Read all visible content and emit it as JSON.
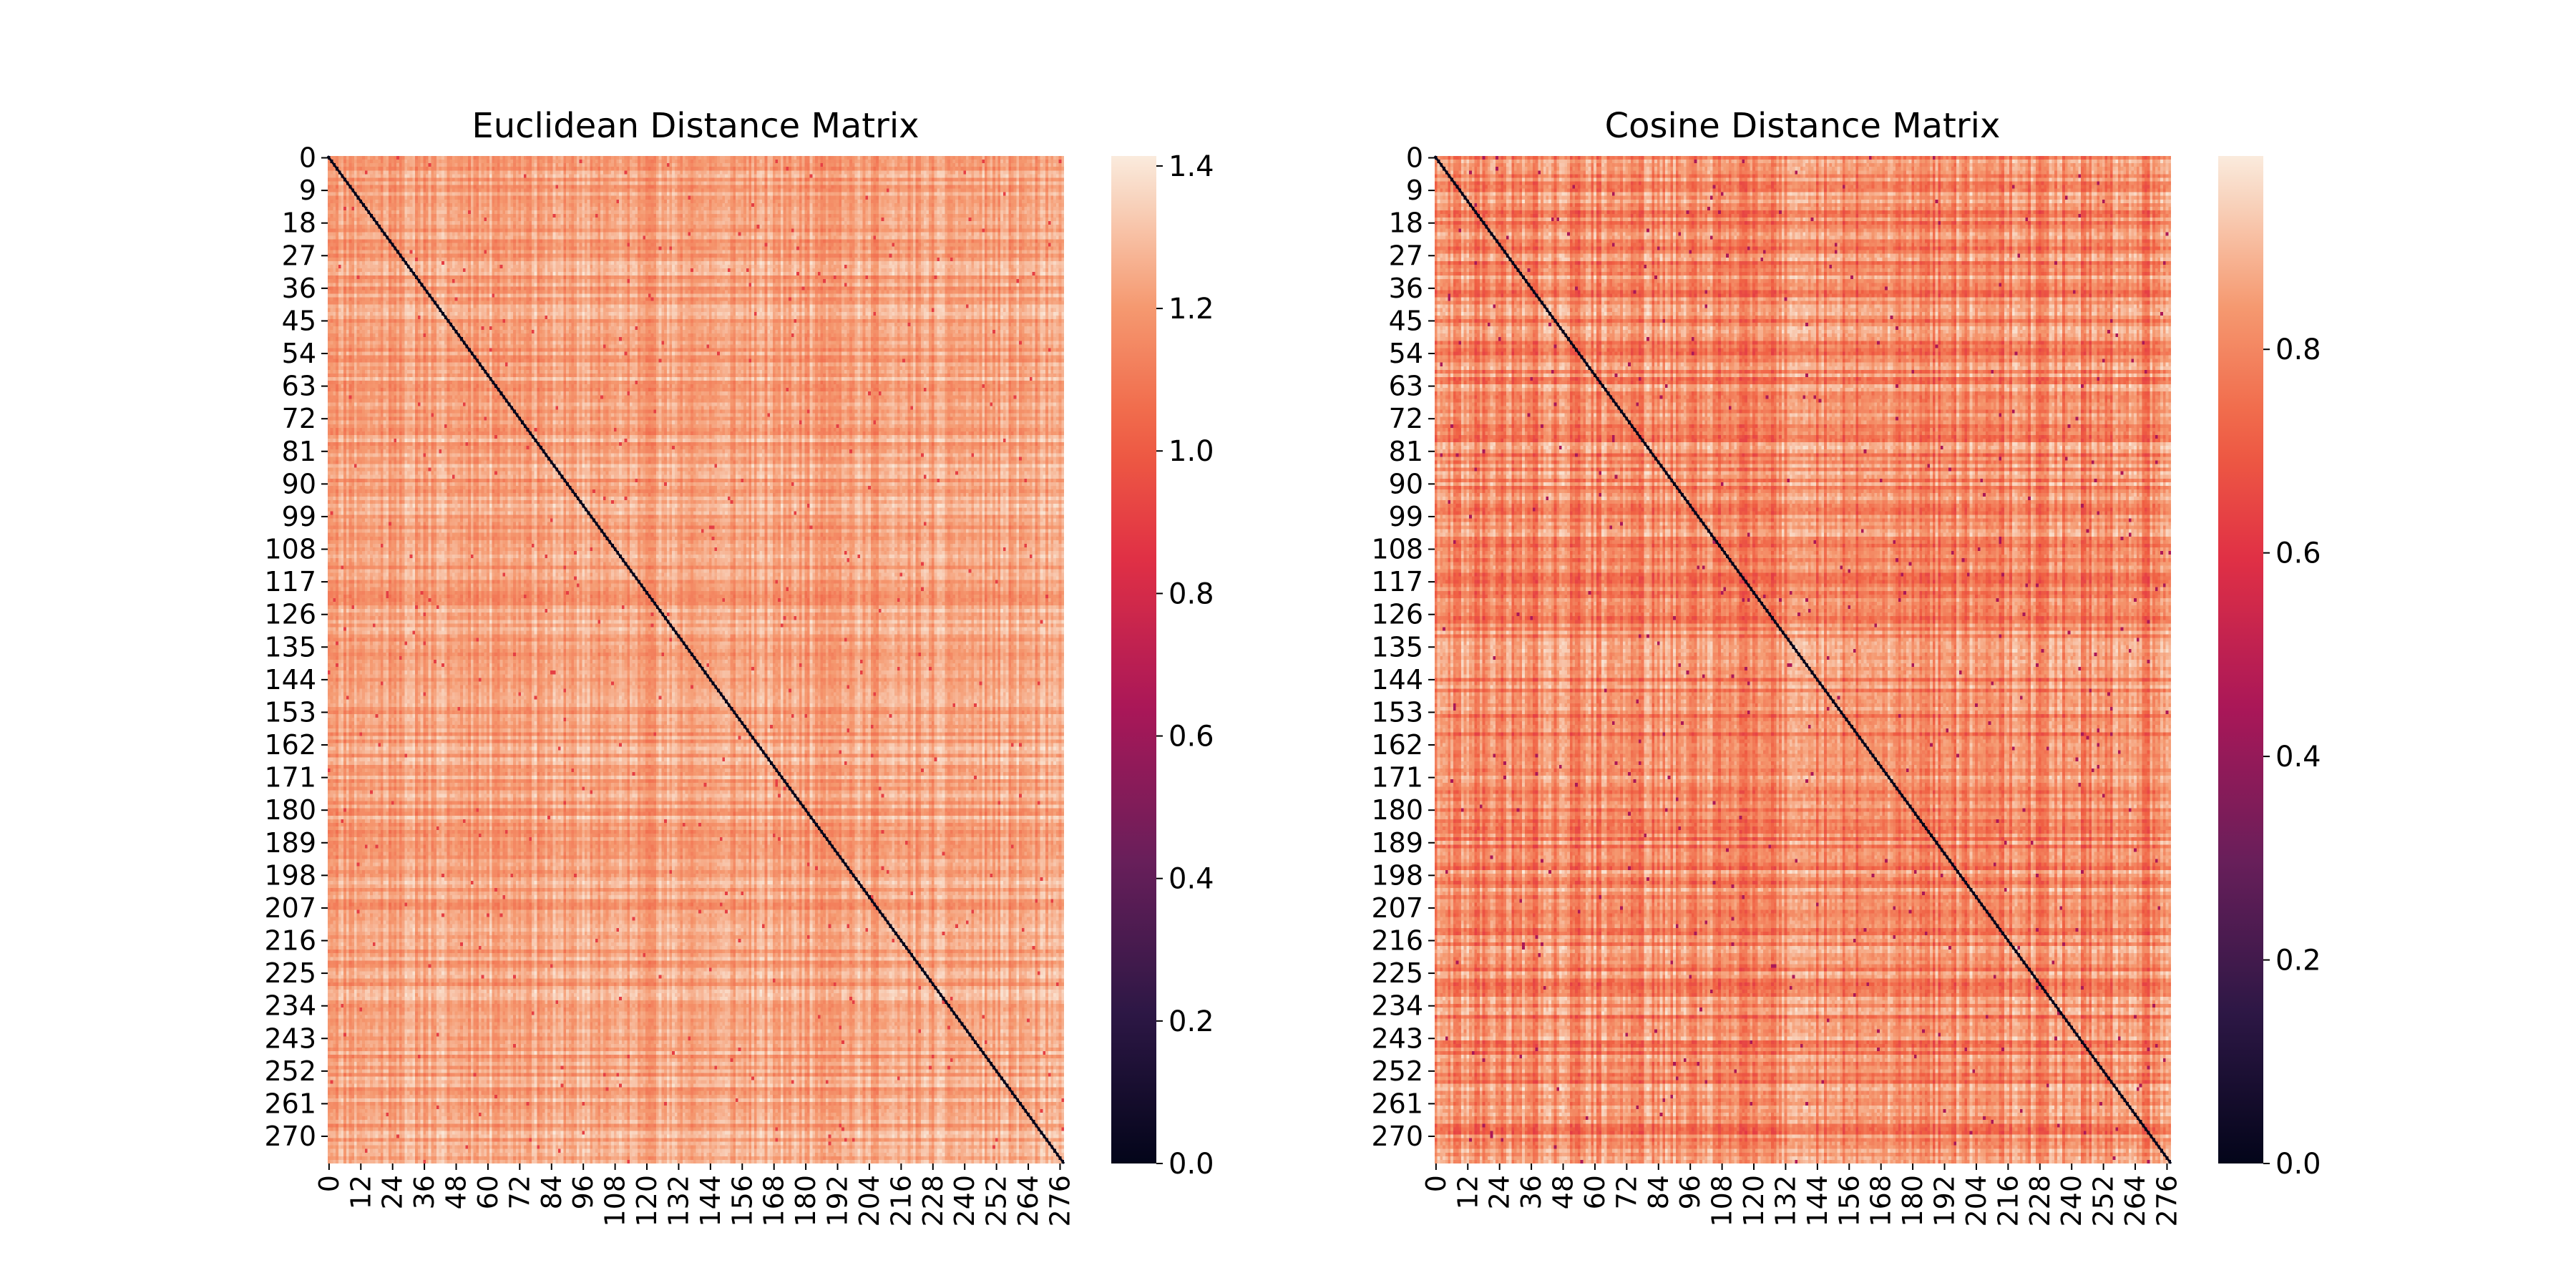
{
  "chart_data": [
    {
      "type": "heatmap",
      "title": "Euclidean Distance Matrix",
      "n": 278,
      "row_ticks": [
        0,
        9,
        18,
        27,
        36,
        45,
        54,
        63,
        72,
        81,
        90,
        99,
        108,
        117,
        126,
        135,
        144,
        153,
        162,
        171,
        180,
        189,
        198,
        207,
        216,
        225,
        234,
        243,
        252,
        261,
        270
      ],
      "col_ticks": [
        0,
        12,
        24,
        36,
        48,
        60,
        72,
        84,
        96,
        108,
        120,
        132,
        144,
        156,
        168,
        180,
        192,
        204,
        216,
        228,
        240,
        252,
        264,
        276
      ],
      "colorbar": {
        "min": 0.0,
        "max": 1.414,
        "ticks": [
          "0.0",
          "0.2",
          "0.4",
          "0.6",
          "0.8",
          "1.0",
          "1.2",
          "1.4"
        ]
      },
      "diagonal_value": 0.0,
      "typical_value": 1.3,
      "off_diagonal_range": [
        0.9,
        1.41
      ]
    },
    {
      "type": "heatmap",
      "title": "Cosine Distance Matrix",
      "n": 278,
      "row_ticks": [
        0,
        9,
        18,
        27,
        36,
        45,
        54,
        63,
        72,
        81,
        90,
        99,
        108,
        117,
        126,
        135,
        144,
        153,
        162,
        171,
        180,
        189,
        198,
        207,
        216,
        225,
        234,
        243,
        252,
        261,
        270
      ],
      "col_ticks": [
        0,
        12,
        24,
        36,
        48,
        60,
        72,
        84,
        96,
        108,
        120,
        132,
        144,
        156,
        168,
        180,
        192,
        204,
        216,
        228,
        240,
        252,
        264,
        276
      ],
      "colorbar": {
        "min": 0.0,
        "max": 0.99,
        "ticks": [
          "0.0",
          "0.2",
          "0.4",
          "0.6",
          "0.8"
        ]
      },
      "diagonal_value": 0.0,
      "typical_value": 0.85,
      "off_diagonal_range": [
        0.45,
        0.99
      ]
    }
  ]
}
